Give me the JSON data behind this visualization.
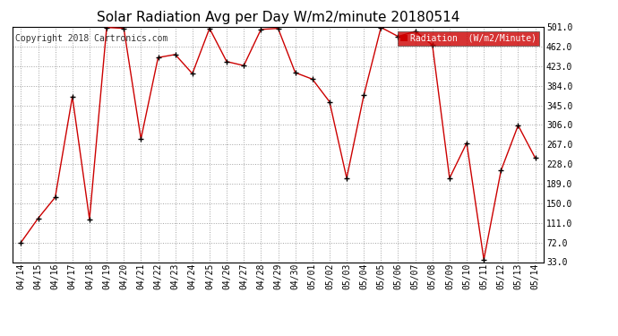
{
  "title": "Solar Radiation Avg per Day W/m2/minute 20180514",
  "copyright": "Copyright 2018 Cartronics.com",
  "legend_label": "Radiation  (W/m2/Minute)",
  "legend_bg": "#cc0000",
  "legend_text_color": "#ffffff",
  "line_color": "#cc0000",
  "marker_color": "#000000",
  "bg_color": "#ffffff",
  "plot_bg_color": "#ffffff",
  "grid_color": "#999999",
  "dates": [
    "04/14",
    "04/15",
    "04/16",
    "04/17",
    "04/18",
    "04/19",
    "04/20",
    "04/21",
    "04/22",
    "04/23",
    "04/24",
    "04/25",
    "04/26",
    "04/27",
    "04/28",
    "04/29",
    "04/30",
    "05/01",
    "05/02",
    "05/03",
    "05/04",
    "05/05",
    "05/06",
    "05/07",
    "05/08",
    "05/09",
    "05/10",
    "05/11",
    "05/12",
    "05/13",
    "05/14"
  ],
  "values": [
    72,
    120,
    162,
    362,
    118,
    500,
    498,
    278,
    440,
    446,
    408,
    498,
    432,
    424,
    496,
    498,
    410,
    397,
    352,
    200,
    365,
    500,
    482,
    492,
    465,
    200,
    270,
    38,
    215,
    305,
    240
  ],
  "yticks": [
    33.0,
    72.0,
    111.0,
    150.0,
    189.0,
    228.0,
    267.0,
    306.0,
    345.0,
    384.0,
    423.0,
    462.0,
    501.0
  ],
  "ylim": [
    33.0,
    501.0
  ],
  "title_fontsize": 11,
  "copyright_fontsize": 7,
  "tick_fontsize": 7,
  "legend_fontsize": 7
}
